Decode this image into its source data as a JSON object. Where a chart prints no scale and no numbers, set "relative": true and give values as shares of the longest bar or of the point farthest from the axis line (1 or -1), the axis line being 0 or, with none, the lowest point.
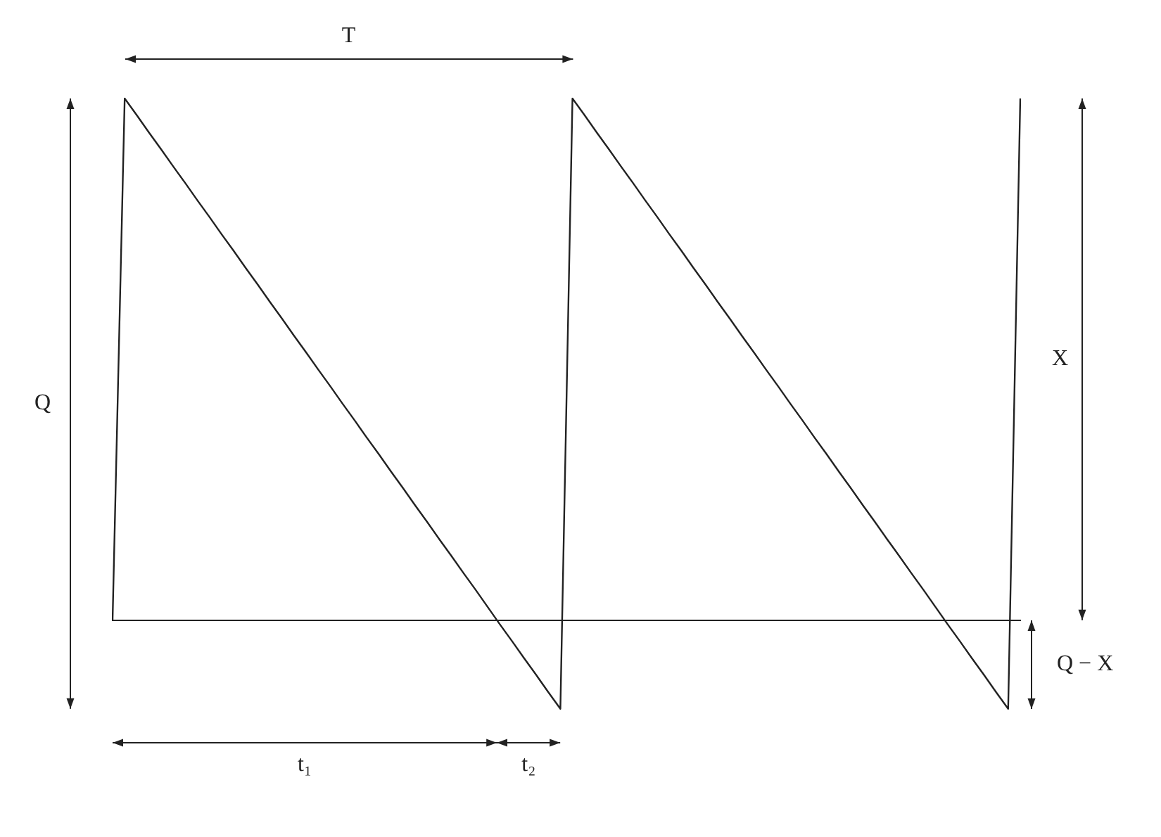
{
  "chart_data": {
    "type": "line",
    "relative": true,
    "marker": "none",
    "line_style": "solid",
    "color": "#222222",
    "categories": [
      null,
      null,
      null,
      null,
      null,
      null,
      null,
      null,
      null,
      null,
      null,
      null,
      null,
      null,
      null,
      null,
      null,
      null,
      null,
      null,
      null,
      null,
      null,
      null,
      null,
      null,
      null,
      null,
      null,
      null,
      null,
      null,
      null,
      null,
      null,
      null,
      null,
      null,
      null,
      null,
      null,
      null,
      null,
      null,
      null,
      null,
      null,
      null,
      null,
      null,
      null,
      null,
      null,
      null,
      null,
      null,
      null,
      null,
      null,
      null,
      null,
      null,
      null,
      null,
      null,
      null,
      null,
      null,
      null,
      null,
      null,
      null,
      null,
      null,
      null,
      null
    ],
    "values": [
      0,
      1,
      0.968,
      0.935,
      0.903,
      0.87,
      0.838,
      0.805,
      0.773,
      0.74,
      0.708,
      0.675,
      0.643,
      0.61,
      0.578,
      0.545,
      0.513,
      0.48,
      0.448,
      0.415,
      0.383,
      0.35,
      0.318,
      0.285,
      0.253,
      0.22,
      0.188,
      0.155,
      0.123,
      0.09,
      0.058,
      0.025,
      -0.008,
      -0.04,
      -0.073,
      -0.105,
      -0.138,
      -0.17,
      1,
      0.968,
      0.935,
      0.903,
      0.87,
      0.838,
      0.805,
      0.773,
      0.74,
      0.708,
      0.675,
      0.643,
      0.61,
      0.578,
      0.545,
      0.513,
      0.48,
      0.448,
      0.415,
      0.383,
      0.35,
      0.318,
      0.285,
      0.253,
      0.22,
      0.188,
      0.155,
      0.123,
      0.09,
      0.058,
      0.025,
      -0.008,
      -0.04,
      -0.073,
      -0.105,
      -0.138,
      -0.17,
      1
    ],
    "annotations": [
      "T",
      "Q",
      "X",
      "Q − X",
      "t₁",
      "t₂"
    ]
  }
}
